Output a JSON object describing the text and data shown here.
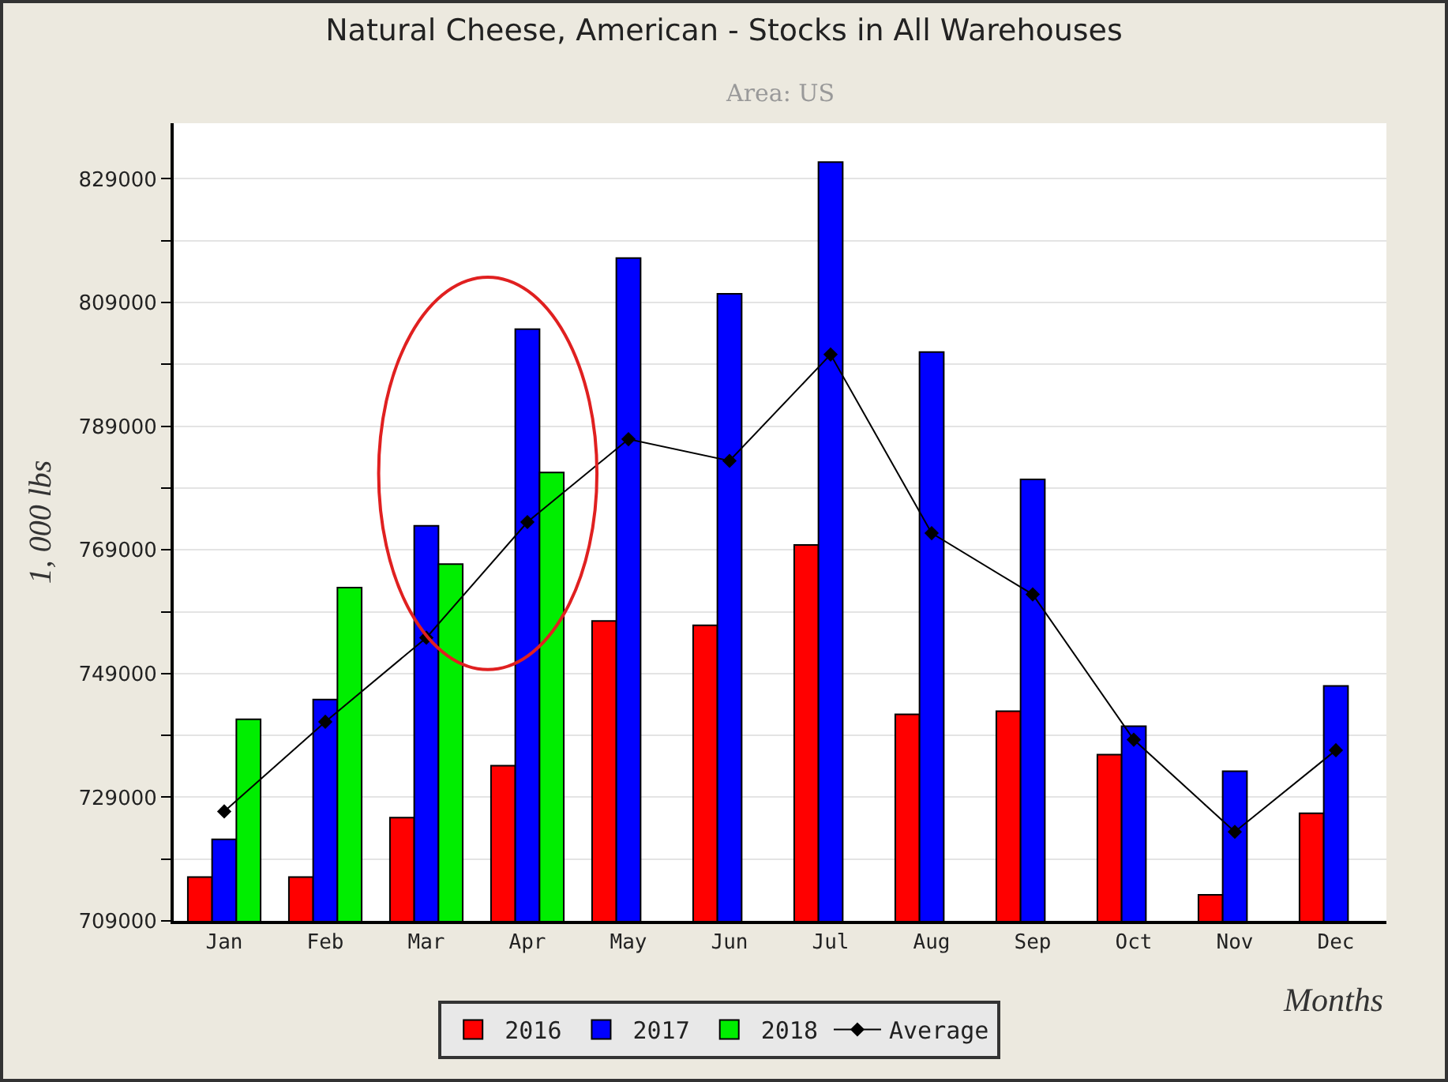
{
  "chart_data": {
    "type": "bar",
    "title": "Natural Cheese, American - Stocks in All Warehouses",
    "subtitle": "Area: US",
    "xlabel": "Months",
    "ylabel": "1, 000 lbs",
    "categories": [
      "Jan",
      "Feb",
      "Mar",
      "Apr",
      "May",
      "Jun",
      "Jul",
      "Aug",
      "Sep",
      "Oct",
      "Nov",
      "Dec"
    ],
    "series": [
      {
        "name": "2016",
        "color": "#ff0000",
        "values": [
          716100,
          716100,
          725700,
          734100,
          757500,
          756800,
          769800,
          742400,
          742900,
          735900,
          713200,
          726400
        ]
      },
      {
        "name": "2017",
        "color": "#0000ff",
        "values": [
          722200,
          744800,
          772900,
          804700,
          816200,
          810400,
          831700,
          801000,
          780400,
          740500,
          733200,
          747000
        ]
      },
      {
        "name": "2018",
        "color": "#00ee00",
        "values": [
          741600,
          762900,
          766700,
          781500,
          null,
          null,
          null,
          null,
          null,
          null,
          null,
          null
        ]
      },
      {
        "name": "Average",
        "type": "line",
        "color": "#000000",
        "marker": "diamond",
        "values": [
          726700,
          741200,
          754800,
          773500,
          786900,
          783400,
          800600,
          771700,
          761800,
          738300,
          723400,
          736600
        ]
      }
    ],
    "ylim": [
      709000,
      838000
    ],
    "yticks": [
      709000,
      {
        "value": 719000,
        "label": null
      },
      729000,
      {
        "value": 739000,
        "label": null
      },
      749000,
      {
        "value": 759000,
        "label": null
      },
      769000,
      {
        "value": 779000,
        "label": null
      },
      789000,
      {
        "value": 799000,
        "label": null
      },
      809000,
      {
        "value": 819000,
        "label": null
      },
      829000
    ],
    "grid": "y",
    "legend": "bottom"
  }
}
